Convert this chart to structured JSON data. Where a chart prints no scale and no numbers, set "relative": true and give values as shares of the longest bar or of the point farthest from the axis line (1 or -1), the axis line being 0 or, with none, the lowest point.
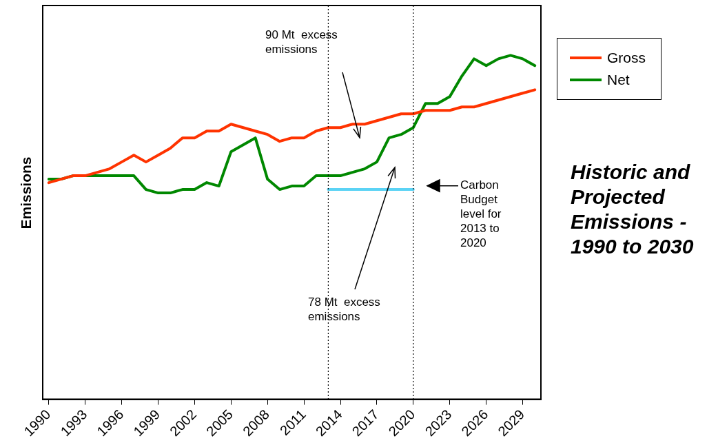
{
  "chart_data": {
    "type": "line",
    "title": "Historic and Projected Emissions - 1990 to 2030",
    "ylabel": "Emissions",
    "relative": true,
    "legend": "top right",
    "x": [
      1990,
      1991,
      1992,
      1993,
      1994,
      1995,
      1996,
      1997,
      1998,
      1999,
      2000,
      2001,
      2002,
      2003,
      2004,
      2005,
      2006,
      2007,
      2008,
      2009,
      2010,
      2011,
      2012,
      2013,
      2014,
      2015,
      2016,
      2017,
      2018,
      2019,
      2020,
      2021,
      2022,
      2023,
      2024,
      2025,
      2026,
      2027,
      2028,
      2029,
      2030
    ],
    "xlim": [
      1989.5,
      2030.5
    ],
    "xticks": [
      1990,
      1993,
      1996,
      1999,
      2002,
      2005,
      2008,
      2011,
      2014,
      2017,
      2020,
      2023,
      2026,
      2029
    ],
    "series": [
      {
        "name": "Gross",
        "color": "#ff3300",
        "values": [
          0.63,
          0.64,
          0.65,
          0.65,
          0.66,
          0.67,
          0.69,
          0.71,
          0.69,
          0.71,
          0.73,
          0.76,
          0.76,
          0.78,
          0.78,
          0.8,
          0.79,
          0.78,
          0.77,
          0.75,
          0.76,
          0.76,
          0.78,
          0.79,
          0.79,
          0.8,
          0.8,
          0.81,
          0.82,
          0.83,
          0.83,
          0.84,
          0.84,
          0.84,
          0.85,
          0.85,
          0.86,
          0.87,
          0.88,
          0.89,
          0.9
        ]
      },
      {
        "name": "Net",
        "color": "#008800",
        "values": [
          0.64,
          0.64,
          0.65,
          0.65,
          0.65,
          0.65,
          0.65,
          0.65,
          0.61,
          0.6,
          0.6,
          0.61,
          0.61,
          0.63,
          0.62,
          0.72,
          0.74,
          0.76,
          0.64,
          0.61,
          0.62,
          0.62,
          0.65,
          0.65,
          0.65,
          0.66,
          0.67,
          0.69,
          0.76,
          0.77,
          0.79,
          0.86,
          0.86,
          0.88,
          0.94,
          0.99,
          0.97,
          0.99,
          1.0,
          0.99,
          0.97
        ]
      },
      {
        "color": "#5bd3f5",
        "x": [
          2013,
          2020
        ],
        "values": [
          0.61,
          0.61
        ]
      }
    ],
    "ref_lines": [
      {
        "axis": "x",
        "value": 2013,
        "line_style": "dotted"
      },
      {
        "axis": "x",
        "value": 2020,
        "line_style": "dotted"
      }
    ],
    "annotations": [
      "90 Mt  excess emissions",
      "78 Mt  excess emissions",
      "Carbon Budget level for 2013 to 2020"
    ]
  }
}
